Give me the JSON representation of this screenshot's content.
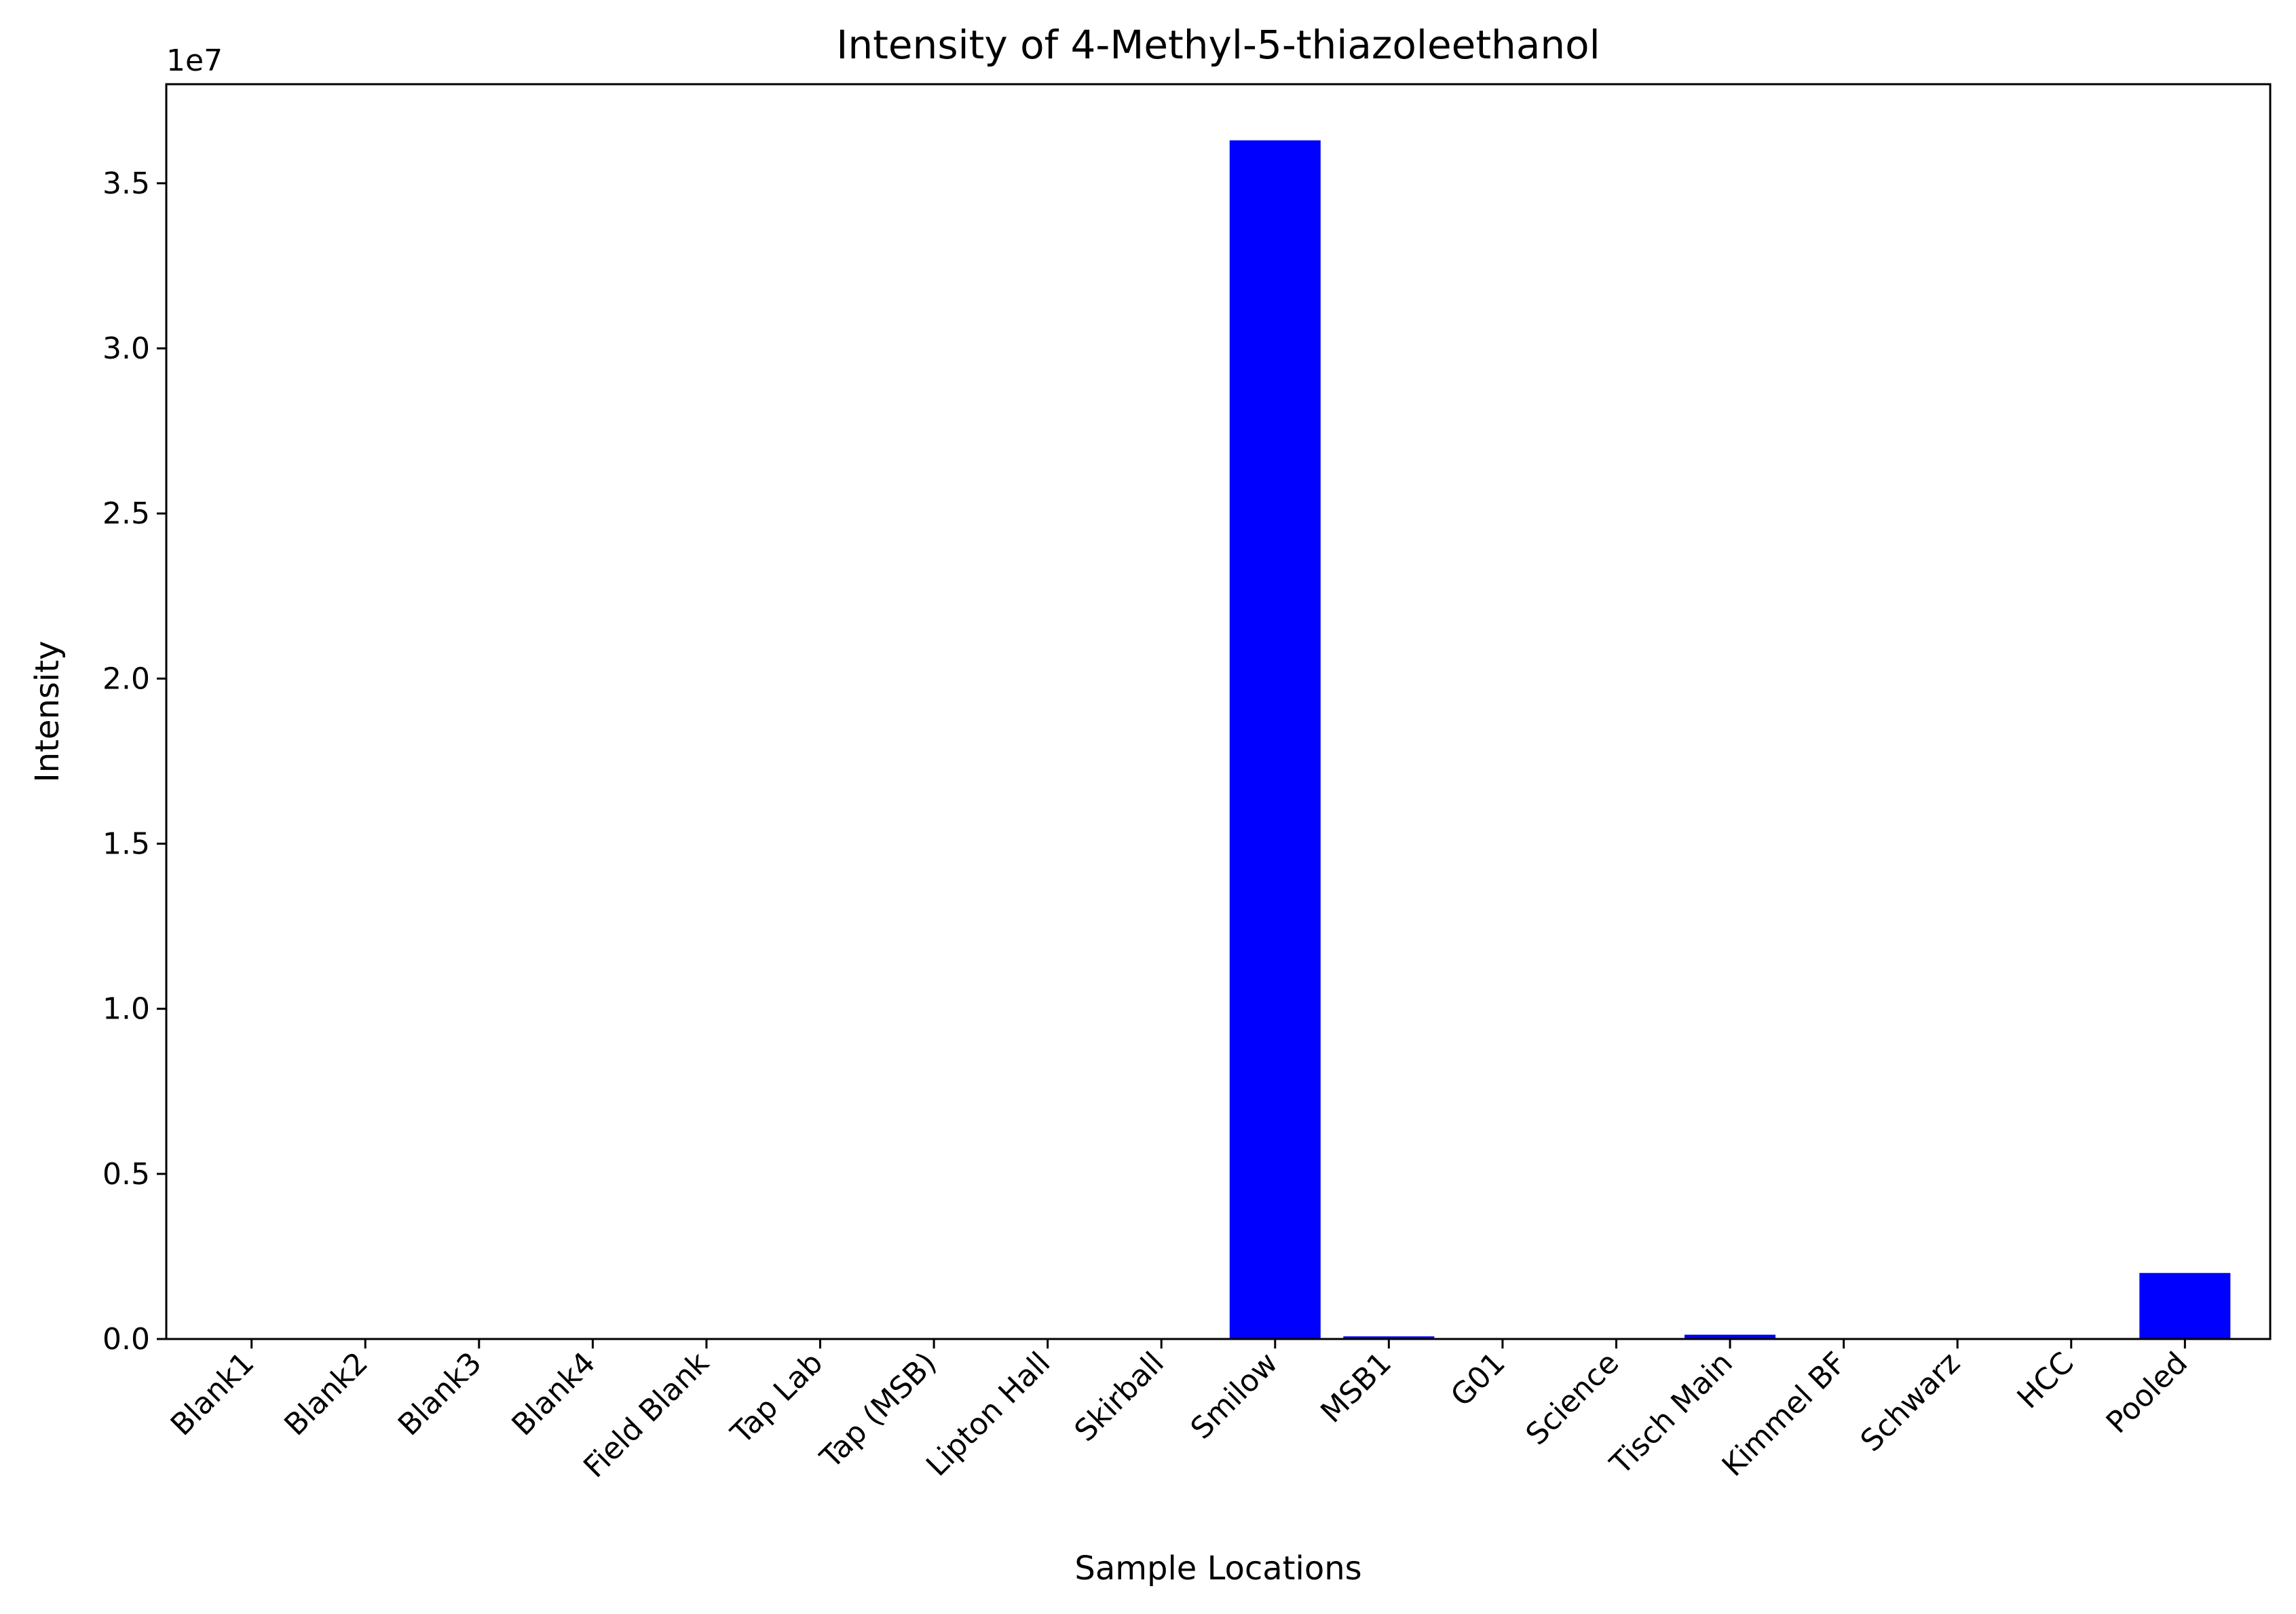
{
  "chart_data": {
    "type": "bar",
    "title": "Intensity of 4-Methyl-5-thiazoleethanol",
    "xlabel": "Sample Locations",
    "ylabel": "Intensity",
    "offset_label": "1e7",
    "categories": [
      "Blank1",
      "Blank2",
      "Blank3",
      "Blank4",
      "Field Blank",
      "Tap Lab",
      "Tap (MSB)",
      "Lipton Hall",
      "Skirball",
      "Smilow",
      "MSB1",
      "G01",
      "Science",
      "Tisch Main",
      "Kimmel BF",
      "Schwarz",
      "HCC",
      "Pooled"
    ],
    "values": [
      0,
      0,
      0,
      0,
      0,
      0,
      0,
      0,
      0,
      36300000,
      80000,
      0,
      0,
      130000,
      0,
      0,
      0,
      2000000
    ],
    "ylim": [
      0,
      38000000
    ],
    "yticks": [
      0,
      5000000,
      10000000,
      15000000,
      20000000,
      25000000,
      30000000,
      35000000
    ],
    "ytick_labels": [
      "0.0",
      "0.5",
      "1.0",
      "1.5",
      "2.0",
      "2.5",
      "3.0",
      "3.5"
    ],
    "bar_color": "#0000ff",
    "grid": false,
    "legend": "none"
  }
}
